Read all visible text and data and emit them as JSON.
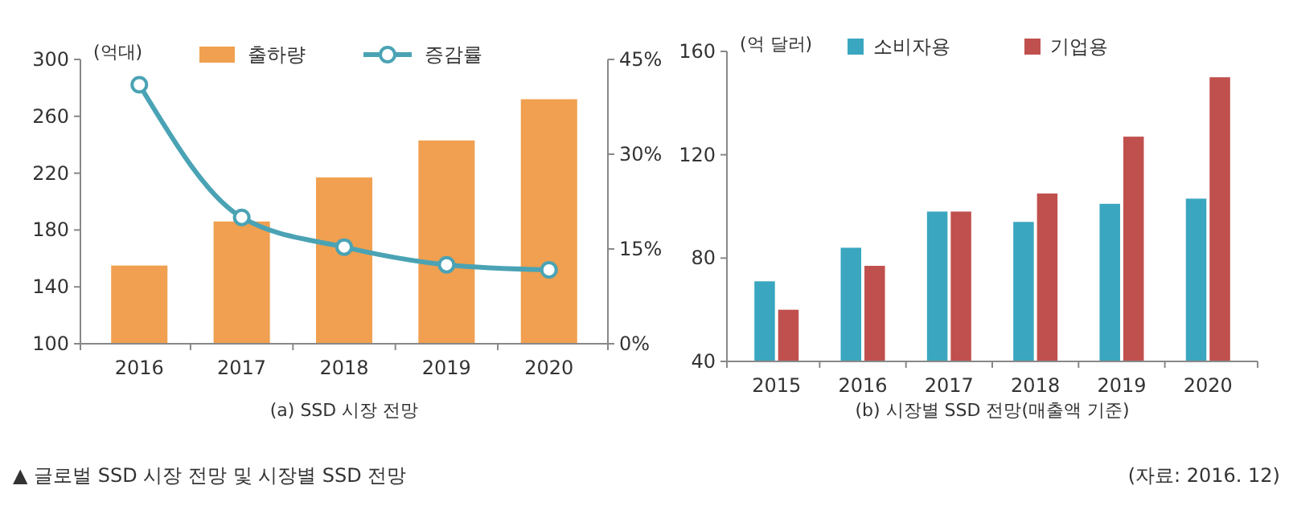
{
  "chart_data": [
    {
      "type": "bar",
      "categories": [
        "2016",
        "2017",
        "2018",
        "2019",
        "2020"
      ],
      "xlabel": "(a) SSD 시장 전망",
      "ylabel": "(억대)",
      "ylim": [
        100,
        300
      ],
      "yticks": [
        100,
        140,
        180,
        220,
        260,
        300
      ],
      "y2lim": [
        0,
        45
      ],
      "y2ticks": [
        {
          "value": 0,
          "label": "0%"
        },
        {
          "value": 15,
          "label": "15%"
        },
        {
          "value": 30,
          "label": "30%"
        },
        {
          "value": 45,
          "label": "45%"
        }
      ],
      "legend": "top",
      "marker": "circle",
      "series": [
        {
          "name": "출하량",
          "color": "#f0a050",
          "values": [
            155,
            186,
            217,
            243,
            272
          ]
        },
        {
          "name": "증감률",
          "type": "line",
          "axis": "y2",
          "color": "#4aa3b4",
          "values": [
            41,
            20,
            15.3,
            12.5,
            11.7
          ]
        }
      ],
      "annotations": [
        "▲ 글로벌 SSD 시장 전망 및 시장별 SSD 전망",
        "(자료: 2016. 12)"
      ]
    },
    {
      "type": "bar",
      "categories": [
        "2015",
        "2016",
        "2017",
        "2018",
        "2019",
        "2020"
      ],
      "xlabel": "(b) 시장별 SSD 전망(매출액 기준)",
      "ylabel": "(억 달러)",
      "ylim": [
        40,
        160
      ],
      "yticks": [
        40,
        80,
        120,
        160
      ],
      "legend": "top",
      "series": [
        {
          "name": "소비자용",
          "color": "#3aa6c0",
          "values": [
            71,
            84,
            98,
            94,
            101,
            103
          ]
        },
        {
          "name": "기업용",
          "color": "#c0504d",
          "values": [
            60,
            77,
            98,
            105,
            127,
            150
          ]
        }
      ]
    }
  ]
}
